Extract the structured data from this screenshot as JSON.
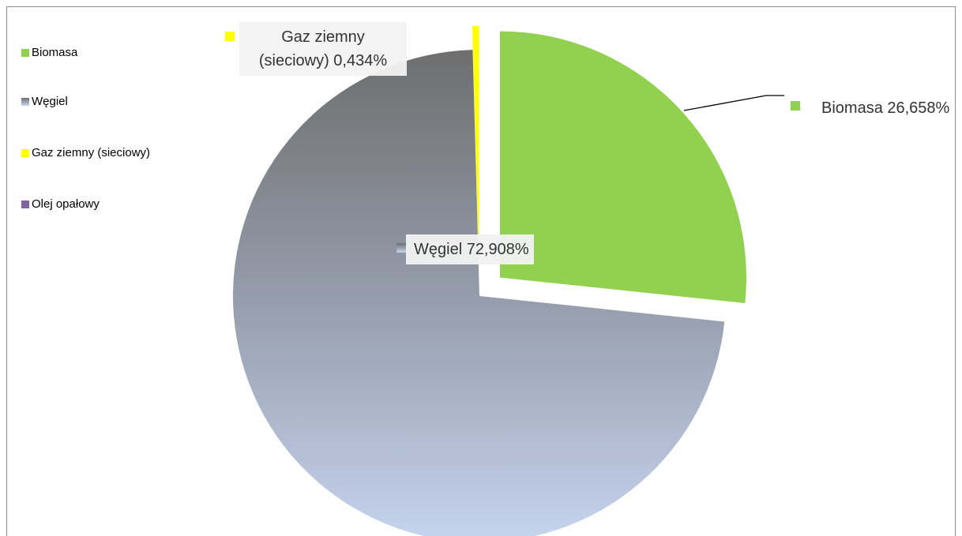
{
  "chart_data": {
    "type": "pie",
    "categories": [
      "Biomasa",
      "Węgiel",
      "Gaz ziemny (sieciowy)",
      "Olej opałowy"
    ],
    "values": [
      26.658,
      72.908,
      0.434,
      0
    ],
    "value_labels": [
      "Biomasa 26,658%",
      "Węgiel 72,908%",
      "Gaz ziemny (sieciowy) 0,434%",
      null
    ],
    "colors": [
      "#92d050",
      "#8e97a6",
      "#ffff00",
      "#8064a2"
    ],
    "legend": "left"
  }
}
